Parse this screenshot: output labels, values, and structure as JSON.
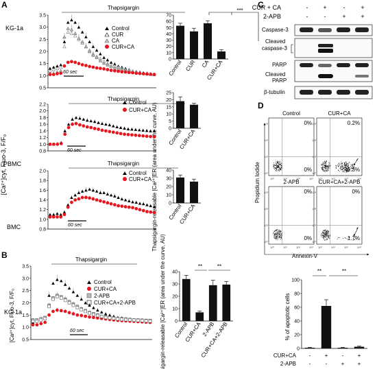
{
  "panels": {
    "A": {
      "letter": "A",
      "y_axis_label": "[Ca²⁺]cyt, Fluo-3, F/F₀",
      "rows": [
        {
          "cell": "KG-1a",
          "stimulus": "Thapsigargin",
          "time_scale": "60 sec",
          "legend": [
            "Control",
            "CUR",
            "CA",
            "CUR+CA"
          ],
          "y_ticks": [
            "0.5",
            "1.0",
            "1.5",
            "2.0",
            "2.5",
            "3.0",
            "3.5"
          ]
        },
        {
          "cell": "PBMC",
          "stimulus": "Thapsigargin",
          "time_scale": "60 sec",
          "legend": [
            "Control",
            "CUR+CA"
          ],
          "y_ticks": [
            "0.8",
            "1.0",
            "1.2",
            "1.4",
            "1.6",
            "1.8",
            "2.0",
            "2.2"
          ]
        },
        {
          "cell": "BMC",
          "stimulus": "Thapsigargin",
          "time_scale": "60 sec",
          "legend": [
            "Control",
            "CUR+CA"
          ],
          "y_ticks": [
            "0.8",
            "1.0",
            "1.2",
            "1.4",
            "1.6",
            "1.8",
            "2.0"
          ]
        }
      ],
      "bar_y_axis_label": "Thapsigargin-releasable [Ca²⁺]ER (area under the curve, AU)",
      "bar_significance": "***"
    },
    "B": {
      "letter": "B",
      "cell": "KG-1a",
      "stimulus": "Thapsigargin",
      "time_scale": "60 sec",
      "legend": [
        "Control",
        "CUR+CA",
        "2-APB",
        "CUR+CA+2-APB"
      ],
      "y_axis_label": "[Ca²⁺]cyt, Fluo-3, F/F₀",
      "y_ticks": [
        "0.5",
        "1.0",
        "1.5",
        "2.0",
        "2.5",
        "3.0",
        "3.5"
      ],
      "bar_y_axis_label": "Thapsigargin-releasable [Ca²⁺]ER (area under the curve, AU)",
      "bar_significance": [
        "**",
        "**"
      ]
    },
    "C": {
      "letter": "C",
      "conditions": [
        {
          "label": "CUR + CA",
          "signs": [
            "-",
            "+",
            "-",
            "+"
          ]
        },
        {
          "label": "2-APB",
          "signs": [
            "-",
            "-",
            "+",
            "+"
          ]
        }
      ],
      "blots": [
        "Caspase-3",
        "Cleaved caspase-3",
        "PARP",
        "Cleaved PARP",
        "β-tubulin"
      ]
    },
    "D": {
      "letter": "D",
      "plots": [
        {
          "title": "Control",
          "upper_right": "0%",
          "lower_right": "0%"
        },
        {
          "title": "CUR+CA",
          "upper_right": "0.2%",
          "lower_right": "49.3%"
        },
        {
          "title": "2-APB",
          "upper_right": "0%",
          "lower_right": "0%"
        },
        {
          "title": "CUR+CA+2-APB",
          "upper_right": "0%",
          "lower_right": "1.7%"
        }
      ],
      "x_axis_label": "Annexin-V",
      "y_axis_label": "Propidium Iodide",
      "bar_y_axis_label": "% of apoptotic cells",
      "bar_significance": [
        "**",
        "**"
      ],
      "bar_rows": [
        {
          "label": "CUR+CA",
          "signs": [
            "-",
            "+",
            "-",
            "+"
          ]
        },
        {
          "label": "2-APB",
          "signs": [
            "-",
            "-",
            "+",
            "+"
          ]
        }
      ]
    }
  },
  "chart_data": [
    {
      "type": "line",
      "panel": "A",
      "title": "KG-1a",
      "ylim": [
        0.5,
        3.5
      ],
      "series": [
        {
          "name": "Control",
          "marker": "triangle",
          "values": [
            1.3,
            1.35,
            1.4,
            1.45,
            2.4,
            3.2,
            3.3,
            3.2,
            3.0,
            2.8,
            2.6,
            2.4,
            2.2,
            2.05,
            1.9,
            1.75,
            1.65,
            1.55,
            1.48,
            1.4,
            1.35,
            1.3,
            1.25,
            1.2,
            1.18,
            1.15,
            1.12,
            1.1,
            1.08,
            1.06
          ]
        },
        {
          "name": "CUR",
          "marker": "open-triangle",
          "values": [
            1.2,
            1.25,
            1.3,
            1.35,
            2.2,
            2.8,
            2.75,
            2.65,
            2.5,
            2.35,
            2.2,
            2.05,
            1.9,
            1.8,
            1.7,
            1.6,
            1.5,
            1.45,
            1.4,
            1.35,
            1.3,
            1.25,
            1.22,
            1.2,
            1.17,
            1.15,
            1.12,
            1.1,
            1.08,
            1.06
          ]
        },
        {
          "name": "CA",
          "marker": "open-triangle",
          "values": [
            1.1,
            1.1,
            1.15,
            1.2,
            2.6,
            2.95,
            2.9,
            2.75,
            2.55,
            2.4,
            2.2,
            2.0,
            1.85,
            1.75,
            1.62,
            1.52,
            1.45,
            1.38,
            1.32,
            1.28,
            1.25,
            1.2,
            1.17,
            1.15,
            1.13,
            1.12,
            1.1,
            1.08,
            1.06,
            1.05
          ]
        },
        {
          "name": "CUR+CA",
          "marker": "circle",
          "values": [
            1.05,
            1.05,
            1.08,
            1.1,
            1.4,
            1.55,
            1.58,
            1.55,
            1.5,
            1.45,
            1.42,
            1.38,
            1.35,
            1.32,
            1.3,
            1.28,
            1.25,
            1.22,
            1.2,
            1.18,
            1.16,
            1.15,
            1.13,
            1.12,
            1.1,
            1.09,
            1.08,
            1.07,
            1.06,
            1.05
          ]
        }
      ]
    },
    {
      "type": "bar",
      "panel": "A",
      "title": "KG-1a",
      "categories": [
        "Control",
        "CUR",
        "CA",
        "CUR+CA"
      ],
      "values": [
        53,
        44,
        57,
        12
      ],
      "errors": [
        4,
        5,
        4,
        3
      ],
      "ylim": [
        0,
        70
      ]
    },
    {
      "type": "line",
      "panel": "A",
      "title": "PBMC",
      "ylim": [
        0.8,
        2.2
      ],
      "series": [
        {
          "name": "Control",
          "marker": "triangle",
          "values": [
            1.0,
            1.0,
            1.02,
            1.05,
            1.4,
            1.6,
            1.75,
            1.8,
            1.78,
            1.75,
            1.72,
            1.7,
            1.68,
            1.65,
            1.62,
            1.6,
            1.58,
            1.55,
            1.52,
            1.5,
            1.48,
            1.46,
            1.45,
            1.44,
            1.43,
            1.42,
            1.41,
            1.4,
            1.4
          ]
        },
        {
          "name": "CUR+CA",
          "marker": "circle",
          "values": [
            1.0,
            1.0,
            1.0,
            1.02,
            1.3,
            1.5,
            1.6,
            1.62,
            1.58,
            1.55,
            1.52,
            1.5,
            1.47,
            1.45,
            1.42,
            1.4,
            1.38,
            1.36,
            1.34,
            1.32,
            1.3,
            1.29,
            1.28,
            1.27,
            1.26,
            1.25,
            1.24,
            1.23,
            1.22
          ]
        }
      ]
    },
    {
      "type": "bar",
      "panel": "A",
      "title": "PBMC",
      "categories": [
        "Control",
        "CUR+CA"
      ],
      "values": [
        19,
        16.5
      ],
      "errors": [
        3,
        1
      ],
      "ylim": [
        0,
        25
      ]
    },
    {
      "type": "line",
      "panel": "A",
      "title": "BMC",
      "ylim": [
        0.8,
        2.0
      ],
      "series": [
        {
          "name": "Control",
          "marker": "triangle",
          "values": [
            1.1,
            1.1,
            1.12,
            1.1,
            1.15,
            1.3,
            1.45,
            1.5,
            1.55,
            1.58,
            1.6,
            1.62,
            1.6,
            1.58,
            1.55,
            1.55,
            1.52,
            1.5,
            1.48,
            1.45,
            1.42,
            1.4,
            1.38,
            1.36,
            1.35,
            1.33,
            1.32,
            1.3,
            1.28,
            1.26
          ]
        },
        {
          "name": "CUR+CA",
          "marker": "circle",
          "values": [
            1.05,
            1.05,
            1.05,
            1.05,
            1.1,
            1.25,
            1.35,
            1.4,
            1.42,
            1.45,
            1.45,
            1.44,
            1.42,
            1.4,
            1.38,
            1.36,
            1.34,
            1.32,
            1.3,
            1.28,
            1.27,
            1.26,
            1.25,
            1.24,
            1.22,
            1.2,
            1.18,
            1.16,
            1.15,
            1.14
          ]
        }
      ]
    },
    {
      "type": "bar",
      "panel": "A",
      "title": "BMC",
      "categories": [
        "Control",
        "CUR+CA"
      ],
      "values": [
        31,
        26
      ],
      "errors": [
        3,
        3
      ],
      "ylim": [
        0,
        40
      ]
    },
    {
      "type": "line",
      "panel": "B",
      "title": "KG-1a",
      "ylim": [
        0.5,
        3.5
      ],
      "series": [
        {
          "name": "Control",
          "marker": "triangle",
          "values": [
            1.2,
            1.25,
            1.3,
            1.4,
            2.3,
            2.8,
            2.95,
            2.9,
            2.75,
            2.6,
            2.45,
            2.3,
            2.15,
            2.0,
            1.9,
            1.8,
            1.7,
            1.62,
            1.55,
            1.5,
            1.45,
            1.4,
            1.38,
            1.35,
            1.32,
            1.3,
            1.28,
            1.25,
            1.24,
            1.22
          ]
        },
        {
          "name": "CUR+CA",
          "marker": "circle",
          "values": [
            1.1,
            1.1,
            1.15,
            1.2,
            1.5,
            1.65,
            1.7,
            1.68,
            1.65,
            1.6,
            1.55,
            1.5,
            1.48,
            1.45,
            1.42,
            1.4,
            1.38,
            1.36,
            1.34,
            1.32,
            1.3,
            1.28,
            1.27,
            1.26,
            1.25,
            1.24,
            1.23,
            1.22,
            1.21,
            1.2
          ]
        },
        {
          "name": "2-APB",
          "marker": "open-square",
          "values": [
            1.3,
            1.3,
            1.35,
            1.4,
            1.9,
            2.2,
            2.3,
            2.25,
            2.15,
            2.05,
            1.95,
            1.85,
            1.75,
            1.68,
            1.6,
            1.55,
            1.5,
            1.45,
            1.42,
            1.4,
            1.38,
            1.36,
            1.35,
            1.34,
            1.32,
            1.3,
            1.3,
            1.29,
            1.28,
            1.28
          ]
        },
        {
          "name": "CUR+CA+2-APB",
          "marker": "open-square",
          "values": [
            1.25,
            1.25,
            1.3,
            1.35,
            1.85,
            2.15,
            2.25,
            2.2,
            2.1,
            2.0,
            1.9,
            1.8,
            1.72,
            1.65,
            1.58,
            1.52,
            1.48,
            1.44,
            1.4,
            1.38,
            1.36,
            1.34,
            1.32,
            1.31,
            1.3,
            1.29,
            1.28,
            1.27,
            1.26,
            1.25
          ]
        }
      ]
    },
    {
      "type": "bar",
      "panel": "B",
      "title": "KG-1a",
      "categories": [
        "Control",
        "CUR+CA",
        "2-APB",
        "CUR+CA+2-APB"
      ],
      "values": [
        34,
        7,
        29,
        29.5
      ],
      "errors": [
        3,
        1,
        4,
        2.5
      ],
      "ylim": [
        0,
        40
      ]
    },
    {
      "type": "bar",
      "panel": "D",
      "categories": [
        "-/-",
        "+/-",
        "-/+",
        "+/+"
      ],
      "values": [
        1,
        62,
        1,
        2.5
      ],
      "errors": [
        0.5,
        9,
        0.5,
        1
      ],
      "ylim": [
        0,
        100
      ]
    }
  ]
}
